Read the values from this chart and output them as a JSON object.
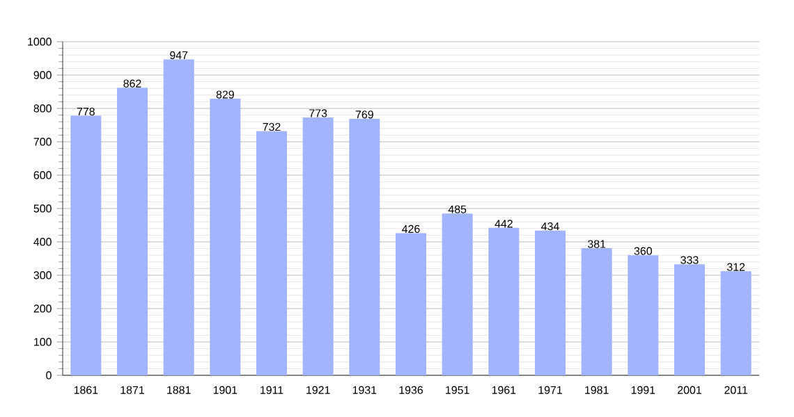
{
  "chart_data": {
    "type": "bar",
    "categories": [
      "1861",
      "1871",
      "1881",
      "1901",
      "1911",
      "1921",
      "1931",
      "1936",
      "1951",
      "1961",
      "1971",
      "1981",
      "1991",
      "2001",
      "2011"
    ],
    "values": [
      778,
      862,
      947,
      829,
      732,
      773,
      769,
      426,
      485,
      442,
      434,
      381,
      360,
      333,
      312
    ],
    "color": "#a0b4ff",
    "data_labels": true,
    "grid": "y",
    "ylim": [
      0,
      1000
    ],
    "yticks": [
      0,
      100,
      200,
      300,
      400,
      500,
      600,
      700,
      800,
      900,
      1000
    ]
  }
}
